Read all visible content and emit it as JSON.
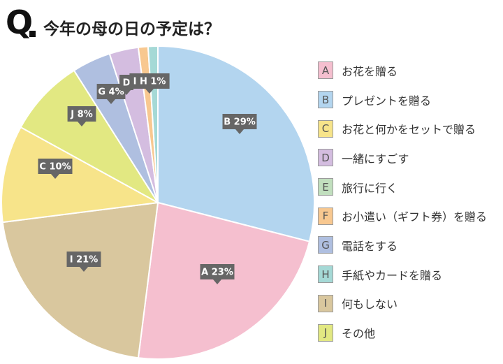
{
  "header": {
    "q_mark": "Q",
    "title": "今年の母の日の予定は？"
  },
  "colors": {
    "A": "#f5bfcf",
    "B": "#b3d5ef",
    "C": "#f7e48a",
    "D": "#d4bde0",
    "E": "#c1dfbe",
    "F": "#f8c890",
    "G": "#afbfe0",
    "H": "#a5d9d6",
    "I": "#d9c79e",
    "J": "#e2e882",
    "label_bg": "#666666"
  },
  "chart_data": {
    "type": "pie",
    "title": "今年の母の日の予定は？",
    "slices": [
      {
        "key": "B",
        "label": "プレゼントを贈る",
        "value": 29,
        "tag": "B 29%"
      },
      {
        "key": "A",
        "label": "お花を贈る",
        "value": 23,
        "tag": "A 23%"
      },
      {
        "key": "I",
        "label": "何もしない",
        "value": 21,
        "tag": "I 21%"
      },
      {
        "key": "C",
        "label": "お花と何かをセットで贈る",
        "value": 10,
        "tag": "C 10%"
      },
      {
        "key": "J",
        "label": "その他",
        "value": 8,
        "tag": "J 8%"
      },
      {
        "key": "G",
        "label": "電話をする",
        "value": 4,
        "tag": "G 4%"
      },
      {
        "key": "D",
        "label": "一緒にすごす",
        "value": 3,
        "tag": "D"
      },
      {
        "key": "F",
        "label": "お小遣い（ギフト券）を贈る",
        "value": 1,
        "tag": ""
      },
      {
        "key": "E",
        "label": "旅行に行く",
        "value": 0,
        "tag": ""
      },
      {
        "key": "H",
        "label": "手紙やカードを贈る",
        "value": 1,
        "tag": "I H 1%"
      }
    ],
    "legend_order": [
      "A",
      "B",
      "C",
      "D",
      "E",
      "F",
      "G",
      "H",
      "I",
      "J"
    ],
    "legend_position": "right"
  }
}
